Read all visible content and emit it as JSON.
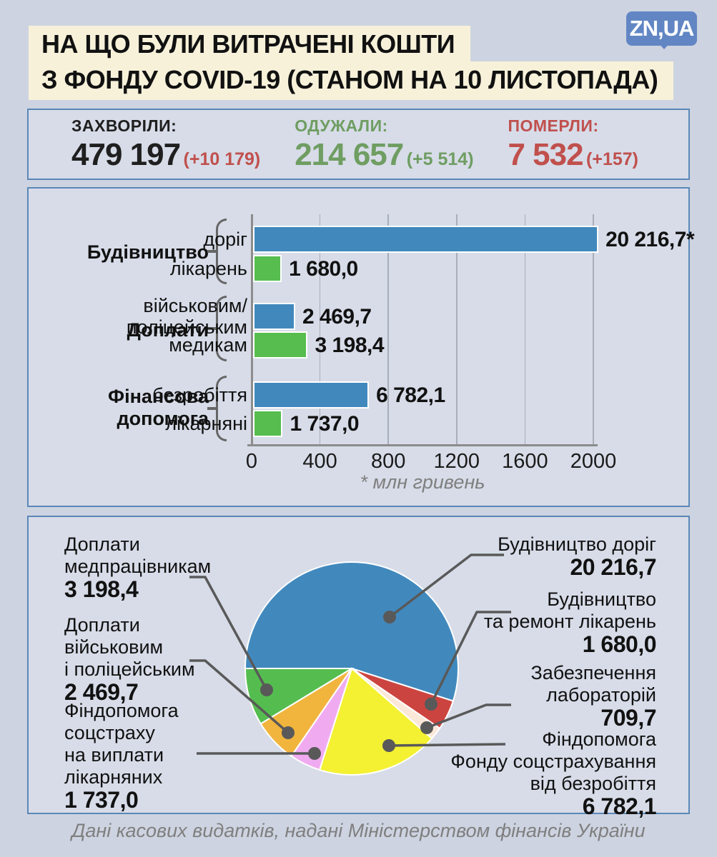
{
  "header": {
    "title_line1": "НА ЩО БУЛИ ВИТРАЧЕНІ КОШТИ",
    "title_line2": "З ФОНДУ COVID-19 (СТАНОМ НА 10 ЛИСТОПАДА)",
    "logo_text": "ZN,UA",
    "logo_color": "#6286c4",
    "highlight_color": "#f7f1da"
  },
  "stats": {
    "items": [
      {
        "label": "ЗАХВОРІЛИ:",
        "value": "479 197",
        "delta": "(+10 179)",
        "color": "#1f1f1f",
        "delta_color": "#c0504d"
      },
      {
        "label": "ОДУЖАЛИ:",
        "value": "214 657",
        "delta": "(+5 514)",
        "color": "#6f9d62",
        "delta_color": "#6f9d62"
      },
      {
        "label": "ПОМЕРЛИ:",
        "value": "7 532",
        "delta": "(+157)",
        "color": "#c0504d",
        "delta_color": "#c0504d"
      }
    ]
  },
  "chart_data": [
    {
      "type": "bar",
      "orientation": "horizontal",
      "unit": "млн гривень",
      "footnote": "* млн гривень",
      "x_ticks": [
        "0",
        "400",
        "800",
        "1200",
        "1600",
        "2000"
      ],
      "groups": [
        {
          "label_lines": [
            "Будівництво"
          ],
          "bars": [
            {
              "label_lines": [
                "доріг"
              ],
              "value": 20216.7,
              "display": "20 216,7*",
              "color": "#4189bd"
            },
            {
              "label_lines": [
                "лікарень"
              ],
              "value": 1680.0,
              "display": "1 680,0",
              "color": "#56bd4e"
            }
          ]
        },
        {
          "label_lines": [
            "Доплати"
          ],
          "bars": [
            {
              "label_lines": [
                "військовим/",
                "поліцейським"
              ],
              "value": 2469.7,
              "display": "2 469,7",
              "color": "#4189bd"
            },
            {
              "label_lines": [
                "медикам"
              ],
              "value": 3198.4,
              "display": "3 198,4",
              "color": "#56bd4e"
            }
          ]
        },
        {
          "label_lines": [
            "Фінансова",
            "допомога"
          ],
          "bars": [
            {
              "label_lines": [
                "безробіття"
              ],
              "value": 6782.1,
              "display": "6 782,1",
              "color": "#4189bd"
            },
            {
              "label_lines": [
                "лікарняні"
              ],
              "value": 1737.0,
              "display": "1 737,0",
              "color": "#56bd4e"
            }
          ]
        }
      ]
    },
    {
      "type": "pie",
      "start_angle_deg": 180,
      "direction": "clockwise",
      "slices": [
        {
          "label": "Будівництво доріг",
          "value": 20216.7,
          "display": "20 216,7",
          "color": "#4189bd"
        },
        {
          "label": "Будівництво та ремонт лікарень",
          "value": 1680.0,
          "display": "1 680,0",
          "color": "#cc4440"
        },
        {
          "label": "Забезпечення лабораторій",
          "value": 709.7,
          "display": "709,7",
          "color": "#fbe8d9"
        },
        {
          "label": "Фіндопомога Фонду соцстрахування від безробіття",
          "value": 6782.1,
          "display": "6 782,1",
          "color": "#f4f032"
        },
        {
          "label": "Фіндопомога соцстраху на виплати лікарняних",
          "value": 1737.0,
          "display": "1 737,0",
          "color": "#f0abf0"
        },
        {
          "label": "Доплати військовим і поліцейським",
          "value": 2469.7,
          "display": "2 469,7",
          "color": "#f1b43d"
        },
        {
          "label": "Доплати медпрацівникам",
          "value": 3198.4,
          "display": "3 198,4",
          "color": "#55bd4f"
        }
      ],
      "callouts": [
        {
          "lines": [
            "Доплати",
            "медпрацівникам"
          ],
          "value": "3 198,4"
        },
        {
          "lines": [
            "Доплати",
            "військовим",
            "і поліцейським"
          ],
          "value": "2 469,7"
        },
        {
          "lines": [
            "Фіндопомога",
            "соцстраху",
            "на виплати",
            "лікарняних"
          ],
          "value": "1 737,0"
        },
        {
          "lines": [
            "Будівництво доріг"
          ],
          "value": "20 216,7"
        },
        {
          "lines": [
            "Будівництво",
            "та ремонт лікарень"
          ],
          "value": "1 680,0"
        },
        {
          "lines": [
            "Забезпечення",
            "лабораторій"
          ],
          "value": "709,7"
        },
        {
          "lines": [
            "Фіндопомога",
            "Фонду соцстрахування",
            "від безробіття"
          ],
          "value": "6 782,1"
        }
      ]
    }
  ],
  "footer": {
    "source": "Дані касових видатків, надані Міністерством фінансів України"
  }
}
